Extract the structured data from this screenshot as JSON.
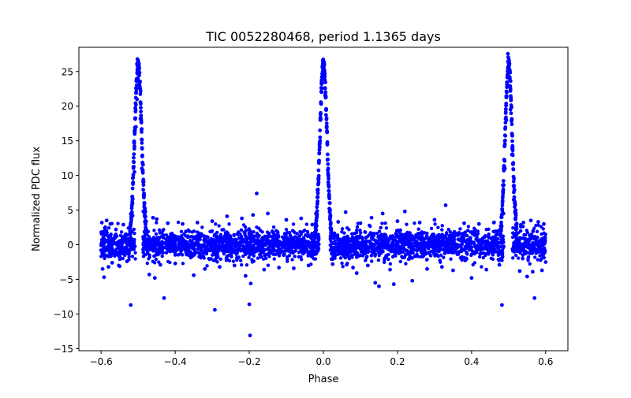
{
  "chart_data": {
    "type": "scatter",
    "title": "TIC 0052280468, period 1.1365 days",
    "xlabel": "Phase",
    "ylabel": "Normalized PDC flux",
    "xlim": [
      -0.66,
      0.66
    ],
    "ylim": [
      -15.3,
      28.5
    ],
    "xticks": [
      -0.6,
      -0.4,
      -0.2,
      0.0,
      0.2,
      0.4,
      0.6
    ],
    "xtick_labels": [
      "−0.6",
      "−0.4",
      "−0.2",
      "0.0",
      "0.2",
      "0.4",
      "0.6"
    ],
    "yticks": [
      -15,
      -10,
      -5,
      0,
      5,
      10,
      15,
      20,
      25
    ],
    "ytick_labels": [
      "−15",
      "−10",
      "−5",
      "0",
      "5",
      "10",
      "15",
      "20",
      "25"
    ],
    "grid": false,
    "marker_color": "#0000ff",
    "series": [
      {
        "name": "",
        "points": [
          [
            -0.6,
            -0.8
          ],
          [
            -0.598,
            3.2
          ],
          [
            -0.596,
            -3.5
          ],
          [
            -0.594,
            1.1
          ],
          [
            -0.592,
            -4.7
          ],
          [
            -0.59,
            2.4
          ],
          [
            -0.585,
            3.5
          ],
          [
            -0.58,
            -3.2
          ],
          [
            -0.575,
            3.0
          ],
          [
            -0.57,
            -2.6
          ],
          [
            -0.56,
            2.2
          ],
          [
            -0.55,
            -3.1
          ],
          [
            -0.54,
            2.9
          ],
          [
            -0.53,
            -2.4
          ],
          [
            -0.52,
            -8.7
          ],
          [
            -0.515,
            4.2
          ],
          [
            -0.51,
            10.5
          ],
          [
            -0.506,
            17.0
          ],
          [
            -0.503,
            21.0
          ],
          [
            -0.501,
            24.0
          ],
          [
            -0.5,
            26.5
          ],
          [
            -0.499,
            25.2
          ],
          [
            -0.497,
            23.0
          ],
          [
            -0.494,
            18.2
          ],
          [
            -0.49,
            11.0
          ],
          [
            -0.486,
            4.8
          ],
          [
            -0.48,
            1.8
          ],
          [
            -0.47,
            -4.3
          ],
          [
            -0.46,
            3.9
          ],
          [
            -0.455,
            -4.8
          ],
          [
            -0.45,
            3.7
          ],
          [
            -0.44,
            -2.9
          ],
          [
            -0.43,
            -7.7
          ],
          [
            -0.42,
            3.1
          ],
          [
            -0.4,
            -2.7
          ],
          [
            -0.38,
            3.0
          ],
          [
            -0.35,
            -4.4
          ],
          [
            -0.34,
            3.2
          ],
          [
            -0.32,
            -3.5
          ],
          [
            -0.3,
            3.4
          ],
          [
            -0.293,
            -9.4
          ],
          [
            -0.28,
            -3.2
          ],
          [
            -0.26,
            4.1
          ],
          [
            -0.24,
            -3.0
          ],
          [
            -0.22,
            3.8
          ],
          [
            -0.21,
            -4.5
          ],
          [
            -0.2,
            -8.6
          ],
          [
            -0.198,
            -13.1
          ],
          [
            -0.196,
            -5.6
          ],
          [
            -0.19,
            4.3
          ],
          [
            -0.18,
            7.4
          ],
          [
            -0.16,
            -3.6
          ],
          [
            -0.15,
            4.5
          ],
          [
            -0.12,
            -3.3
          ],
          [
            -0.1,
            3.6
          ],
          [
            -0.08,
            -3.4
          ],
          [
            -0.06,
            3.8
          ],
          [
            -0.04,
            -3.0
          ],
          [
            -0.03,
            2.9
          ],
          [
            -0.02,
            4.5
          ],
          [
            -0.012,
            11.8
          ],
          [
            -0.008,
            18.0
          ],
          [
            -0.005,
            22.5
          ],
          [
            -0.002,
            25.5
          ],
          [
            0.0,
            26.3
          ],
          [
            0.003,
            25.0
          ],
          [
            0.006,
            22.0
          ],
          [
            0.009,
            17.5
          ],
          [
            0.013,
            11.0
          ],
          [
            0.018,
            4.0
          ],
          [
            0.025,
            -2.8
          ],
          [
            0.04,
            3.3
          ],
          [
            0.06,
            4.7
          ],
          [
            0.08,
            -3.3
          ],
          [
            0.09,
            -4.1
          ],
          [
            0.1,
            3.1
          ],
          [
            0.12,
            -3.0
          ],
          [
            0.13,
            3.9
          ],
          [
            0.14,
            -5.5
          ],
          [
            0.15,
            -6.0
          ],
          [
            0.16,
            4.5
          ],
          [
            0.18,
            -3.6
          ],
          [
            0.19,
            -5.7
          ],
          [
            0.2,
            3.4
          ],
          [
            0.22,
            4.8
          ],
          [
            0.24,
            -5.2
          ],
          [
            0.26,
            3.2
          ],
          [
            0.28,
            -3.5
          ],
          [
            0.3,
            3.6
          ],
          [
            0.32,
            -3.2
          ],
          [
            0.33,
            5.7
          ],
          [
            0.35,
            -3.7
          ],
          [
            0.38,
            3.1
          ],
          [
            0.4,
            -4.8
          ],
          [
            0.42,
            3.0
          ],
          [
            0.44,
            -3.6
          ],
          [
            0.46,
            3.2
          ],
          [
            0.475,
            -2.9
          ],
          [
            0.482,
            -8.7
          ],
          [
            0.486,
            4.5
          ],
          [
            0.49,
            11.0
          ],
          [
            0.494,
            18.0
          ],
          [
            0.497,
            22.8
          ],
          [
            0.499,
            25.3
          ],
          [
            0.5,
            26.5
          ],
          [
            0.502,
            24.0
          ],
          [
            0.505,
            19.5
          ],
          [
            0.509,
            13.0
          ],
          [
            0.514,
            6.5
          ],
          [
            0.52,
            2.2
          ],
          [
            0.53,
            -3.8
          ],
          [
            0.54,
            3.2
          ],
          [
            0.55,
            -4.6
          ],
          [
            0.56,
            3.5
          ],
          [
            0.565,
            -3.9
          ],
          [
            0.57,
            -7.7
          ],
          [
            0.58,
            3.3
          ],
          [
            0.59,
            -3.7
          ],
          [
            0.595,
            3.0
          ],
          [
            0.6,
            -2.5
          ]
        ]
      }
    ]
  }
}
